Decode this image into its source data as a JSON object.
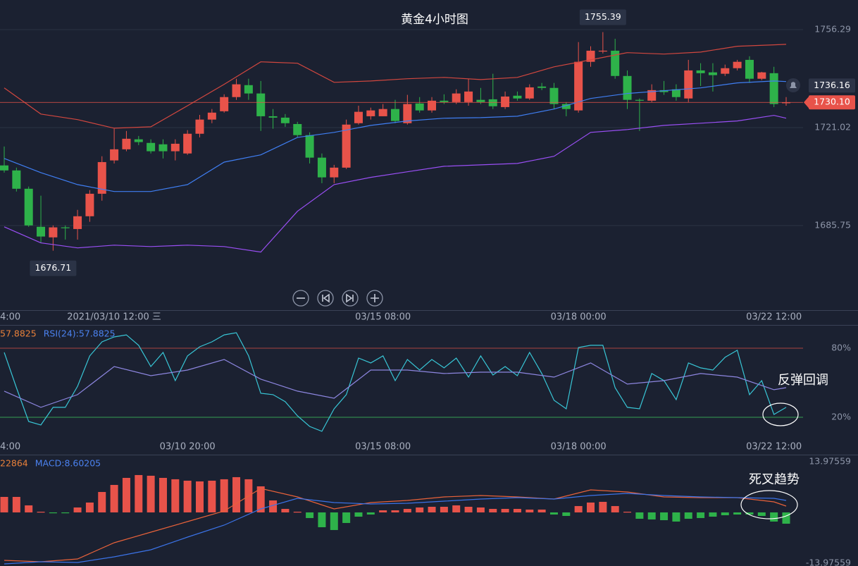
{
  "chart_data": [
    {
      "type": "candlestick",
      "title": "黄金4小时图",
      "categories": [
        "4:00",
        null,
        null,
        null,
        null,
        null,
        null,
        null,
        null,
        "2021/03/10 12:00 三",
        null,
        null,
        null,
        null,
        null,
        null,
        null,
        null,
        null,
        null,
        null,
        null,
        null,
        null,
        null,
        null,
        null,
        null,
        null,
        null,
        null,
        "03/15 08:00",
        null,
        null,
        null,
        null,
        null,
        null,
        null,
        null,
        null,
        null,
        null,
        null,
        null,
        null,
        null,
        "03/18 00:00",
        null,
        null,
        null,
        null,
        null,
        null,
        null,
        null,
        null,
        null,
        null,
        null,
        null,
        null,
        null,
        "03/22 12:00",
        null
      ],
      "open": [
        1707.4,
        1705.6,
        1699.0,
        1685.3,
        1681.5,
        1685.1,
        1684.5,
        1689.1,
        1697.2,
        1709.2,
        1713.2,
        1716.8,
        1715.5,
        1715.0,
        1712.5,
        1711.7,
        1718.8,
        1723.9,
        1726.9,
        1732.0,
        1736.3,
        1733.3,
        1725.1,
        1724.6,
        1722.3,
        1718.3,
        1710.2,
        1703.1,
        1706.6,
        1722.6,
        1725.1,
        1725.1,
        1727.7,
        1722.6,
        1729.7,
        1727.2,
        1730.7,
        1730.2,
        1730.2,
        1731.0,
        1731.2,
        1728.4,
        1732.5,
        1731.5,
        1735.8,
        1735.3,
        1729.5,
        1727.2,
        1744.7,
        1748.5,
        1748.7,
        1739.6,
        1731.0,
        1730.7,
        1734.5,
        1734.8,
        1731.5,
        1741.6,
        1740.9,
        1740.4,
        1742.4,
        1745.4,
        1738.6,
        1740.6,
        1729.8
      ],
      "high": [
        1714.2,
        1706.6,
        1699.8,
        1696.5,
        1685.8,
        1685.8,
        1691.4,
        1698.5,
        1710.7,
        1720.6,
        1719.8,
        1718.0,
        1716.8,
        1716.8,
        1716.8,
        1720.1,
        1725.6,
        1727.7,
        1733.0,
        1738.6,
        1738.6,
        1737.8,
        1727.7,
        1725.9,
        1723.1,
        1719.3,
        1711.7,
        1707.6,
        1723.9,
        1728.9,
        1728.2,
        1729.5,
        1731.0,
        1732.8,
        1732.0,
        1732.0,
        1733.0,
        1734.8,
        1738.6,
        1735.3,
        1740.4,
        1734.0,
        1734.0,
        1736.6,
        1737.1,
        1737.1,
        1730.2,
        1751.8,
        1750.3,
        1755.39,
        1753.0,
        1741.6,
        1731.5,
        1736.6,
        1737.8,
        1736.6,
        1745.4,
        1744.2,
        1744.2,
        1743.7,
        1745.4,
        1746.7,
        1741.1,
        1742.9,
        1732.0
      ],
      "low": [
        1704.8,
        1698.0,
        1685.3,
        1679.5,
        1676.71,
        1680.7,
        1680.7,
        1687.1,
        1694.7,
        1708.1,
        1712.5,
        1714.7,
        1711.7,
        1709.9,
        1709.2,
        1711.2,
        1717.5,
        1722.6,
        1726.4,
        1731.0,
        1731.0,
        1719.8,
        1720.6,
        1721.3,
        1717.5,
        1708.1,
        1701.0,
        1701.0,
        1706.1,
        1722.1,
        1723.9,
        1725.1,
        1722.6,
        1722.1,
        1726.4,
        1726.4,
        1729.5,
        1729.5,
        1728.9,
        1729.5,
        1727.7,
        1727.7,
        1730.7,
        1731.0,
        1734.5,
        1727.7,
        1725.1,
        1726.4,
        1742.9,
        1747.7,
        1738.6,
        1727.7,
        1719.8,
        1730.2,
        1732.8,
        1730.7,
        1730.2,
        1736.0,
        1734.0,
        1739.6,
        1741.6,
        1737.1,
        1738.1,
        1728.4,
        1728.9
      ],
      "close": [
        1705.6,
        1699.0,
        1685.8,
        1681.8,
        1685.1,
        1684.9,
        1689.1,
        1697.2,
        1708.6,
        1713.2,
        1717.0,
        1715.8,
        1712.5,
        1712.5,
        1715.2,
        1718.8,
        1723.9,
        1726.4,
        1732.0,
        1736.6,
        1733.3,
        1725.1,
        1724.6,
        1722.6,
        1718.3,
        1710.2,
        1703.1,
        1706.6,
        1722.1,
        1726.7,
        1727.2,
        1727.7,
        1723.4,
        1729.5,
        1727.2,
        1730.7,
        1730.2,
        1733.3,
        1734.0,
        1730.2,
        1728.7,
        1732.2,
        1731.5,
        1735.5,
        1735.3,
        1729.5,
        1727.7,
        1744.7,
        1748.7,
        1748.7,
        1739.6,
        1731.0,
        1730.7,
        1734.5,
        1733.8,
        1732.0,
        1741.6,
        1740.6,
        1739.9,
        1742.4,
        1744.7,
        1738.6,
        1740.9,
        1729.5,
        1730.1
      ],
      "up_color": "#e8534a",
      "down_color": "#2eb24a",
      "series": [
        {
          "color": "#d2473f",
          "x": [
            0,
            3,
            6,
            9,
            12,
            15,
            18,
            21,
            24,
            27,
            30,
            33,
            36,
            39,
            42,
            45,
            48,
            51,
            54,
            57,
            60,
            63,
            64
          ],
          "values": [
            1735.3,
            1725.9,
            1723.9,
            1720.8,
            1721.3,
            1728.9,
            1736.6,
            1744.7,
            1744.2,
            1737.3,
            1737.8,
            1738.6,
            1739.1,
            1738.3,
            1739.1,
            1742.9,
            1745.4,
            1748.0,
            1747.5,
            1748.2,
            1750.3,
            1750.8,
            1751.0
          ]
        },
        {
          "color": "#3f7ef2",
          "x": [
            0,
            3,
            6,
            9,
            12,
            15,
            18,
            21,
            24,
            27,
            30,
            33,
            36,
            39,
            42,
            45,
            48,
            51,
            54,
            57,
            60,
            63,
            64
          ],
          "values": [
            1709.9,
            1704.8,
            1700.5,
            1698.0,
            1698.0,
            1700.5,
            1708.6,
            1711.2,
            1717.5,
            1719.3,
            1721.8,
            1723.4,
            1724.4,
            1724.6,
            1725.1,
            1727.7,
            1731.5,
            1733.3,
            1734.3,
            1735.3,
            1737.1,
            1737.8,
            1737.6
          ]
        },
        {
          "color": "#9a4ff5",
          "x": [
            0,
            3,
            6,
            9,
            12,
            15,
            18,
            21,
            24,
            27,
            30,
            33,
            36,
            39,
            42,
            45,
            48,
            51,
            54,
            57,
            60,
            63,
            64
          ],
          "values": [
            1685.3,
            1679.5,
            1677.7,
            1678.7,
            1678.2,
            1678.7,
            1678.2,
            1676.2,
            1690.9,
            1700.5,
            1703.1,
            1705.1,
            1707.1,
            1707.6,
            1708.1,
            1710.7,
            1719.3,
            1720.3,
            1721.8,
            1722.6,
            1723.4,
            1725.4,
            1724.4
          ]
        }
      ],
      "ylim": [
        1655.3,
        1766.95
      ],
      "yticks": [
        1685.75,
        1721.02,
        1756.29
      ],
      "grid": true,
      "grid_color": "#2b3244",
      "high_label": 1755.39,
      "low_label": 1676.71,
      "price_markers": [
        {
          "value": 1736.16,
          "label": "1736.16",
          "color": "#2d3447",
          "line": false
        },
        {
          "value": 1730.1,
          "label": "1730.10",
          "color": "#e8534a",
          "line": true
        }
      ]
    },
    {
      "type": "line",
      "categories": [
        "4:00",
        null,
        null,
        null,
        null,
        null,
        null,
        null,
        null,
        null,
        null,
        null,
        null,
        null,
        null,
        "03/10 20:00",
        null,
        null,
        null,
        null,
        null,
        null,
        null,
        null,
        null,
        null,
        null,
        null,
        null,
        null,
        null,
        "03/15 08:00",
        null,
        null,
        null,
        null,
        null,
        null,
        null,
        null,
        null,
        null,
        null,
        null,
        null,
        null,
        null,
        "03/18 00:00",
        null,
        null,
        null,
        null,
        null,
        null,
        null,
        null,
        null,
        null,
        null,
        null,
        null,
        null,
        null,
        "03/22 12:00",
        null
      ],
      "series": [
        {
          "name": "57.8825",
          "color": "#38c6d6",
          "legend_color": "#e8803a",
          "values": [
            76.3,
            45.7,
            16.3,
            13.3,
            28.6,
            28.6,
            46.9,
            73.3,
            85.5,
            89.8,
            91.6,
            82.5,
            64.1,
            76.3,
            51.8,
            73.3,
            81.2,
            85.5,
            91.6,
            93.5,
            73.3,
            40.8,
            39.6,
            33.5,
            21.2,
            12.0,
            7.8,
            27.3,
            39.6,
            71.4,
            67.2,
            73.3,
            51.8,
            70.2,
            61.0,
            70.2,
            62.9,
            71.4,
            54.9,
            73.3,
            56.7,
            64.1,
            56.1,
            76.3,
            58.0,
            34.7,
            27.3,
            80.6,
            82.5,
            82.5,
            45.7,
            28.6,
            27.3,
            58.0,
            51.8,
            35.3,
            67.2,
            62.9,
            61.0,
            72.1,
            78.2,
            39.6,
            51.8,
            22.4,
            28.6
          ]
        },
        {
          "name": "RSI(24):57.8825",
          "color": "#8d86e0",
          "legend_color": "#4b82f0",
          "x": [
            0,
            3,
            6,
            9,
            12,
            15,
            18,
            21,
            24,
            27,
            30,
            33,
            36,
            39,
            42,
            45,
            48,
            51,
            54,
            57,
            60,
            63,
            64
          ],
          "values": [
            42.7,
            28.6,
            39.6,
            64.1,
            56.1,
            61.0,
            70.2,
            53.1,
            42.7,
            36.5,
            61.0,
            61.0,
            58.0,
            59.2,
            59.2,
            54.9,
            67.2,
            48.8,
            51.8,
            58.0,
            54.9,
            43.9,
            45.7
          ]
        }
      ],
      "ylim": [
        -12.5,
        99.6
      ],
      "yticks": [
        {
          "value": 80,
          "label": "80%"
        },
        {
          "value": 20,
          "label": "20%"
        }
      ],
      "grid": true,
      "ytick_colors": [
        "#a8433f",
        "#36a052"
      ],
      "annotation": "反弹回调"
    },
    {
      "type": "bar",
      "values": [
        4.27,
        4.27,
        1.94,
        0.19,
        -0.19,
        -0.19,
        1.36,
        2.72,
        5.63,
        7.57,
        9.51,
        10.29,
        10.1,
        9.51,
        9.13,
        8.74,
        8.54,
        8.74,
        9.13,
        9.71,
        9.13,
        7.18,
        3.3,
        0.97,
        0.19,
        -1.55,
        -4.08,
        -4.85,
        -2.91,
        -1.17,
        -0.58,
        0.58,
        0.58,
        0.97,
        1.36,
        1.55,
        1.55,
        1.94,
        1.55,
        1.36,
        0.97,
        0.97,
        0.97,
        0.78,
        0.78,
        -0.58,
        -0.97,
        1.75,
        2.72,
        2.91,
        1.75,
        0.19,
        -1.75,
        -1.94,
        -2.14,
        -2.52,
        -1.75,
        -1.55,
        -1.17,
        -0.78,
        -0.58,
        -0.58,
        -0.97,
        -2.52,
        -3.11
      ],
      "up_color": "#e8534a",
      "down_color": "#2eb24a",
      "series": [
        {
          "name": "22864",
          "color": "#e8623a",
          "legend_color": "#e8803a",
          "x": [
            0,
            3,
            6,
            9,
            12,
            15,
            18,
            21,
            24,
            27,
            30,
            33,
            36,
            39,
            42,
            45,
            48,
            51,
            54,
            57,
            60,
            63,
            64
          ],
          "values": [
            -13.2,
            -13.59,
            -12.82,
            -8.35,
            -5.44,
            -2.52,
            0.39,
            6.6,
            4.27,
            0.97,
            2.72,
            3.3,
            4.27,
            4.66,
            4.27,
            3.69,
            6.21,
            5.63,
            4.27,
            4.08,
            4.08,
            2.91,
            1.75
          ]
        },
        {
          "name": "MACD:8.60205",
          "color": "#3b73e8",
          "legend_color": "#4b82f0",
          "x": [
            0,
            3,
            6,
            9,
            12,
            15,
            18,
            21,
            24,
            27,
            30,
            33,
            36,
            39,
            42,
            45,
            48,
            51,
            54,
            57,
            60,
            63,
            64
          ],
          "values": [
            -14.17,
            -13.59,
            -13.79,
            -12.23,
            -10.29,
            -6.8,
            -3.5,
            0.97,
            3.88,
            2.72,
            2.33,
            2.52,
            3.11,
            3.69,
            4.08,
            3.69,
            4.66,
            5.24,
            4.66,
            4.27,
            4.08,
            3.88,
            3.3
          ]
        }
      ],
      "ylim": [
        -14.76,
        15.72
      ],
      "yticks": [
        13.97559,
        -13.97559
      ],
      "grid": false,
      "annotation": "死叉趋势"
    }
  ]
}
